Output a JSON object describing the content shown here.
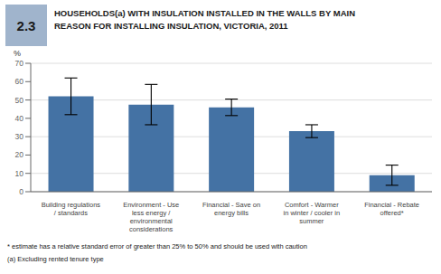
{
  "chart_data": {
    "type": "bar",
    "title": "HOUSEHOLDS(a) WITH INSULATION INSTALLED IN THE WALLS BY MAIN\nREASON FOR INSTALLING INSULATION, VICTORIA, 2011",
    "categories": [
      "Building regulations\n/ standards",
      "Environment - Use\nless energy /\nenvironmental\nconsiderations",
      "Financial - Save on\nenergy bills",
      "Comfort - Warmer\nin winter / cooler in\nsummer",
      "Financial - Rebate\noffered*"
    ],
    "values": [
      52.0,
      47.5,
      46.0,
      33.0,
      9.0
    ],
    "errors": [
      10.0,
      11.0,
      4.5,
      3.5,
      5.5
    ],
    "color": "#4472a4",
    "ylim": [
      0,
      70
    ],
    "yticks": [
      0,
      10,
      20,
      30,
      40,
      50,
      60,
      70
    ],
    "y_label": "%",
    "grid": true,
    "annotations": [
      "2.3",
      "* estimate has a relative standard error of greater than 25% to 50% and should be used with caution",
      "(a) Excluding rented tenure type"
    ]
  }
}
